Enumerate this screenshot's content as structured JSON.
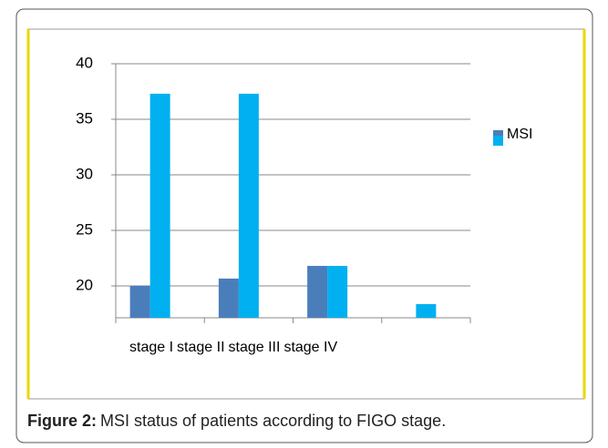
{
  "chart_data": {
    "type": "bar",
    "categories": [
      "stage I",
      "stage II",
      "stage III",
      "stage IV"
    ],
    "series": [
      {
        "name": "MSI",
        "color": "#4a7ebb",
        "values": [
          20,
          20.66,
          21.8,
          null
        ]
      },
      {
        "color": "#00b0f0",
        "values": [
          37.3,
          37.3,
          21.8,
          18.36
        ]
      }
    ],
    "ylim": [
      17.13,
      40
    ],
    "yticks": [
      20,
      25,
      30,
      35,
      40
    ],
    "grid": true
  },
  "caption": {
    "label": "Figure 2:",
    "text": "MSI status of patients according to FIGO stage."
  }
}
